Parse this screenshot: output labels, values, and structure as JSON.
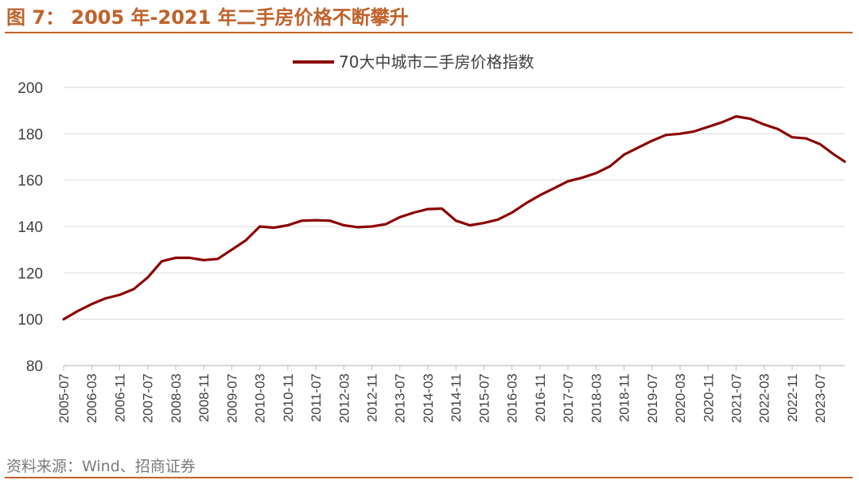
{
  "figure": {
    "title": "图 7： 2005 年-2021 年二手房价格不断攀升",
    "source": "资料来源：Wind、招商证券",
    "accent_color": "#c0622b"
  },
  "chart_data": {
    "type": "line",
    "title": "",
    "xlabel": "",
    "ylabel": "",
    "ylim": [
      80,
      200
    ],
    "yticks": [
      80,
      100,
      120,
      140,
      160,
      180,
      200
    ],
    "xtick_labels": [
      "2005-07",
      "2006-03",
      "2006-11",
      "2007-07",
      "2008-03",
      "2008-11",
      "2009-07",
      "2010-03",
      "2010-11",
      "2011-07",
      "2012-03",
      "2012-11",
      "2013-07",
      "2014-03",
      "2014-11",
      "2015-07",
      "2016-03",
      "2016-11",
      "2017-07",
      "2018-03",
      "2018-11",
      "2019-07",
      "2020-03",
      "2020-11",
      "2021-07",
      "2022-03",
      "2022-11",
      "2023-07"
    ],
    "grid": "horizontal",
    "legend": "top-center",
    "series": [
      {
        "name": "70大中城市二手房价格指数",
        "color": "#8b0000",
        "points": [
          [
            "2005-07",
            100.0
          ],
          [
            "2005-11",
            103.5
          ],
          [
            "2006-03",
            106.5
          ],
          [
            "2006-07",
            109.0
          ],
          [
            "2006-11",
            110.5
          ],
          [
            "2007-03",
            113.0
          ],
          [
            "2007-07",
            118.0
          ],
          [
            "2007-11",
            125.0
          ],
          [
            "2008-03",
            126.5
          ],
          [
            "2008-07",
            126.5
          ],
          [
            "2008-11",
            125.5
          ],
          [
            "2009-03",
            126.0
          ],
          [
            "2009-07",
            130.0
          ],
          [
            "2009-11",
            134.0
          ],
          [
            "2010-03",
            140.0
          ],
          [
            "2010-07",
            139.5
          ],
          [
            "2010-11",
            140.5
          ],
          [
            "2011-03",
            142.5
          ],
          [
            "2011-07",
            142.7
          ],
          [
            "2011-11",
            142.5
          ],
          [
            "2012-03",
            140.5
          ],
          [
            "2012-07",
            139.7
          ],
          [
            "2012-11",
            140.0
          ],
          [
            "2013-03",
            141.0
          ],
          [
            "2013-07",
            144.0
          ],
          [
            "2013-11",
            146.0
          ],
          [
            "2014-03",
            147.5
          ],
          [
            "2014-07",
            147.7
          ],
          [
            "2014-11",
            142.5
          ],
          [
            "2015-03",
            140.5
          ],
          [
            "2015-07",
            141.5
          ],
          [
            "2015-11",
            143.0
          ],
          [
            "2016-03",
            146.0
          ],
          [
            "2016-07",
            150.0
          ],
          [
            "2016-11",
            153.5
          ],
          [
            "2017-03",
            156.5
          ],
          [
            "2017-07",
            159.5
          ],
          [
            "2017-11",
            161.0
          ],
          [
            "2018-03",
            163.0
          ],
          [
            "2018-07",
            166.0
          ],
          [
            "2018-11",
            171.0
          ],
          [
            "2019-03",
            174.0
          ],
          [
            "2019-07",
            177.0
          ],
          [
            "2019-11",
            179.5
          ],
          [
            "2020-03",
            180.0
          ],
          [
            "2020-07",
            181.0
          ],
          [
            "2020-11",
            183.0
          ],
          [
            "2021-03",
            185.0
          ],
          [
            "2021-07",
            187.5
          ],
          [
            "2021-11",
            186.5
          ],
          [
            "2022-03",
            184.0
          ],
          [
            "2022-07",
            182.0
          ],
          [
            "2022-11",
            178.5
          ],
          [
            "2023-03",
            178.0
          ],
          [
            "2023-07",
            175.5
          ],
          [
            "2023-11",
            171.0
          ],
          [
            "2024-02",
            168.0
          ]
        ]
      }
    ]
  }
}
